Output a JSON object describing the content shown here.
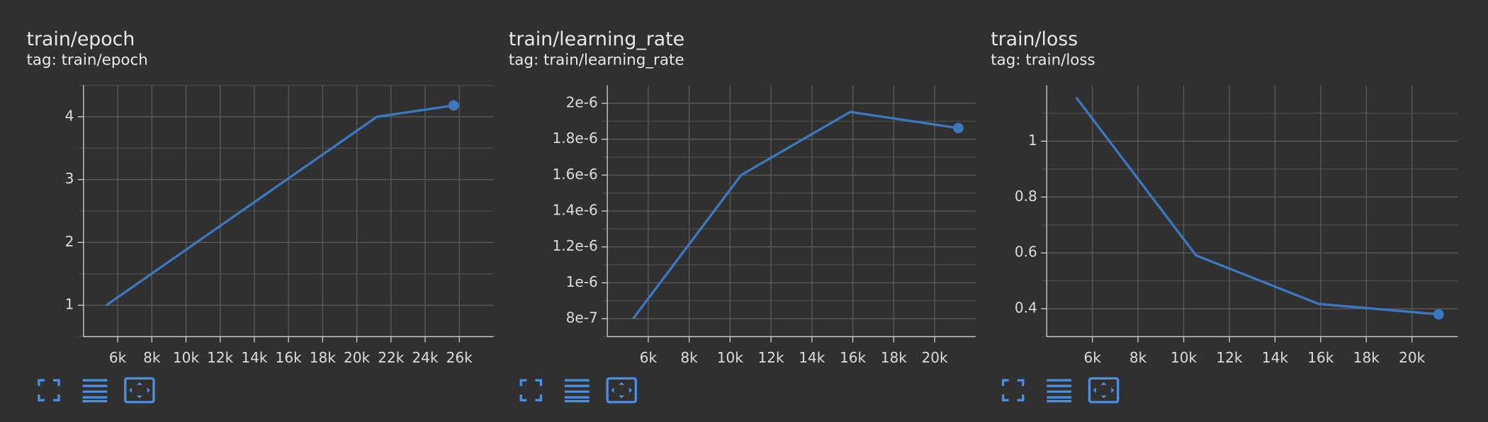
{
  "chart_data": [
    {
      "type": "line",
      "title": "train/epoch",
      "subtitle": "tag: train/epoch",
      "x": [
        5335,
        21180,
        25670
      ],
      "values": [
        1.0,
        4.0,
        4.18
      ],
      "color": "#3b78c0",
      "xlim": [
        4000,
        28000
      ],
      "xticks": [
        {
          "value": 6000,
          "label": "6k"
        },
        {
          "value": 8000,
          "label": "8k"
        },
        {
          "value": 10000,
          "label": "10k"
        },
        {
          "value": 12000,
          "label": "12k"
        },
        {
          "value": 14000,
          "label": "14k"
        },
        {
          "value": 16000,
          "label": "16k"
        },
        {
          "value": 18000,
          "label": "18k"
        },
        {
          "value": 20000,
          "label": "20k"
        },
        {
          "value": 22000,
          "label": "22k"
        },
        {
          "value": 24000,
          "label": "24k"
        },
        {
          "value": 26000,
          "label": "26k"
        }
      ],
      "ylim": [
        0.5,
        4.5
      ],
      "yticks": [
        1,
        2,
        3,
        4
      ],
      "grid": true
    },
    {
      "type": "line",
      "title": "train/learning_rate",
      "subtitle": "tag: train/learning_rate",
      "x": [
        5260,
        10540,
        15875,
        21160
      ],
      "values": [
        8e-07,
        1.6e-06,
        1.952e-06,
        1.862e-06
      ],
      "color": "#3b78c0",
      "xlim": [
        4000,
        22000
      ],
      "xticks": [
        {
          "value": 6000,
          "label": "6k"
        },
        {
          "value": 8000,
          "label": "8k"
        },
        {
          "value": 10000,
          "label": "10k"
        },
        {
          "value": 12000,
          "label": "12k"
        },
        {
          "value": 14000,
          "label": "14k"
        },
        {
          "value": 16000,
          "label": "16k"
        },
        {
          "value": 18000,
          "label": "18k"
        },
        {
          "value": 20000,
          "label": "20k"
        }
      ],
      "ylim": [
        7e-07,
        2.1e-06
      ],
      "yticks": [
        {
          "value": 8e-07,
          "label": "8e-7"
        },
        {
          "value": 1e-06,
          "label": "1e-6"
        },
        {
          "value": 1.2e-06,
          "label": "1.2e-6"
        },
        {
          "value": 1.4e-06,
          "label": "1.4e-6"
        },
        {
          "value": 1.6e-06,
          "label": "1.6e-6"
        },
        {
          "value": 1.8e-06,
          "label": "1.8e-6"
        },
        {
          "value": 2e-06,
          "label": "2e-6"
        }
      ],
      "grid": true
    },
    {
      "type": "line",
      "title": "train/loss",
      "subtitle": "tag: train/loss",
      "x": [
        5290,
        10540,
        15920,
        21170
      ],
      "values": [
        1.157,
        0.591,
        0.417,
        0.38
      ],
      "color": "#3b78c0",
      "xlim": [
        4000,
        22000
      ],
      "xticks": [
        {
          "value": 6000,
          "label": "6k"
        },
        {
          "value": 8000,
          "label": "8k"
        },
        {
          "value": 10000,
          "label": "10k"
        },
        {
          "value": 12000,
          "label": "12k"
        },
        {
          "value": 14000,
          "label": "14k"
        },
        {
          "value": 16000,
          "label": "16k"
        },
        {
          "value": 18000,
          "label": "18k"
        },
        {
          "value": 20000,
          "label": "20k"
        }
      ],
      "ylim": [
        0.3,
        1.2
      ],
      "yticks": [
        0.4,
        0.6,
        0.8,
        1
      ],
      "grid": true
    }
  ]
}
